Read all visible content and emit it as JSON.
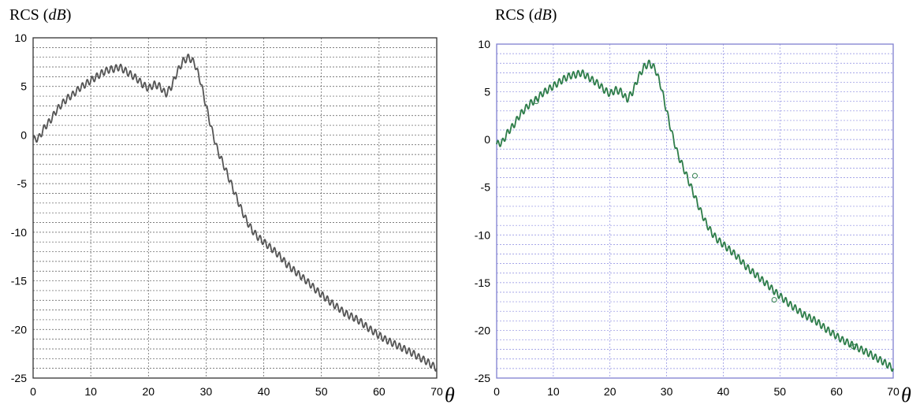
{
  "chart_data": [
    {
      "type": "line",
      "ylabel": "RCS (dB)",
      "ylabel_prefix": "RCS (",
      "ylabel_unit": "dB",
      "ylabel_suffix": ")",
      "xlabel": "θ",
      "xlim": [
        0,
        70
      ],
      "ylim": [
        -25,
        10
      ],
      "xticks": [
        0,
        10,
        20,
        30,
        40,
        50,
        60,
        70
      ],
      "yticks": [
        10,
        5,
        0,
        -5,
        -10,
        -15,
        -20,
        -25
      ],
      "minor_y_step": 1,
      "grid": true,
      "series": [
        {
          "color": "#555555",
          "x": [
            0,
            1,
            2,
            3,
            4,
            5,
            6,
            7,
            8,
            9,
            10,
            11,
            12,
            13,
            14,
            15,
            16,
            17,
            18,
            19,
            20,
            21,
            22,
            23,
            24,
            25,
            26,
            27,
            28,
            29,
            30,
            31,
            32,
            33,
            34,
            35,
            36,
            37,
            38,
            39,
            40,
            41,
            42,
            43,
            44,
            45,
            46,
            47,
            48,
            49,
            50,
            51,
            52,
            53,
            54,
            55,
            56,
            57,
            58,
            59,
            60,
            61,
            62,
            63,
            64,
            65,
            66,
            67,
            68,
            69,
            70
          ],
          "y": [
            -0.5,
            -0.3,
            0.8,
            1.5,
            2.5,
            3.2,
            3.8,
            4.2,
            4.8,
            5.2,
            5.6,
            6.0,
            6.4,
            6.7,
            6.8,
            7.0,
            6.6,
            6.2,
            5.8,
            5.2,
            4.8,
            5.2,
            5.0,
            4.2,
            5.0,
            6.5,
            7.6,
            8.0,
            7.4,
            5.6,
            3.0,
            0.5,
            -1.6,
            -3.0,
            -4.5,
            -6.0,
            -7.5,
            -8.8,
            -9.8,
            -10.5,
            -11.0,
            -11.5,
            -12.0,
            -12.6,
            -13.3,
            -13.8,
            -14.3,
            -14.8,
            -15.3,
            -15.9,
            -16.4,
            -16.9,
            -17.4,
            -17.8,
            -18.3,
            -18.6,
            -18.9,
            -19.3,
            -19.8,
            -20.2,
            -20.6,
            -21.0,
            -21.3,
            -21.6,
            -21.9,
            -22.2,
            -22.5,
            -22.9,
            -23.2,
            -23.6,
            -24.0
          ],
          "ripple_amplitude": 0.35,
          "ripple_per_degree": 1.2
        }
      ]
    },
    {
      "type": "line",
      "ylabel": "RCS (dB)",
      "ylabel_prefix": "RCS (",
      "ylabel_unit": "dB",
      "ylabel_suffix": ")",
      "xlabel": "θ",
      "xlim": [
        0,
        70
      ],
      "ylim": [
        -25,
        10
      ],
      "xticks": [
        0,
        10,
        20,
        30,
        40,
        50,
        60,
        70
      ],
      "yticks": [
        10,
        5,
        0,
        -5,
        -10,
        -15,
        -20,
        -25
      ],
      "minor_y_step": 1,
      "grid": true,
      "series": [
        {
          "color": "#2e7d4a",
          "x": [
            0,
            1,
            2,
            3,
            4,
            5,
            6,
            7,
            8,
            9,
            10,
            11,
            12,
            13,
            14,
            15,
            16,
            17,
            18,
            19,
            20,
            21,
            22,
            23,
            24,
            25,
            26,
            27,
            28,
            29,
            30,
            31,
            32,
            33,
            34,
            35,
            36,
            37,
            38,
            39,
            40,
            41,
            42,
            43,
            44,
            45,
            46,
            47,
            48,
            49,
            50,
            51,
            52,
            53,
            54,
            55,
            56,
            57,
            58,
            59,
            60,
            61,
            62,
            63,
            64,
            65,
            66,
            67,
            68,
            69,
            70
          ],
          "y": [
            -0.5,
            -0.3,
            0.8,
            1.5,
            2.5,
            3.2,
            3.8,
            4.2,
            4.8,
            5.2,
            5.6,
            6.0,
            6.4,
            6.7,
            6.8,
            7.0,
            6.6,
            6.2,
            5.8,
            5.2,
            4.8,
            5.2,
            5.0,
            4.2,
            5.0,
            6.5,
            7.6,
            8.0,
            7.4,
            5.6,
            3.0,
            0.5,
            -1.6,
            -3.0,
            -4.5,
            -6.0,
            -7.5,
            -8.8,
            -9.8,
            -10.5,
            -11.0,
            -11.5,
            -12.0,
            -12.6,
            -13.3,
            -13.8,
            -14.3,
            -14.8,
            -15.3,
            -15.9,
            -16.4,
            -16.9,
            -17.4,
            -17.8,
            -18.3,
            -18.6,
            -18.9,
            -19.3,
            -19.8,
            -20.2,
            -20.6,
            -21.0,
            -21.3,
            -21.6,
            -21.9,
            -22.2,
            -22.5,
            -22.9,
            -23.2,
            -23.6,
            -24.0
          ],
          "ripple_amplitude": 0.35,
          "ripple_per_degree": 1.2
        }
      ],
      "markers": [
        {
          "x": 7,
          "y": 4.0
        },
        {
          "x": 35,
          "y": -3.8
        },
        {
          "x": 49,
          "y": -16.8
        },
        {
          "x": 63,
          "y": -21.7
        }
      ]
    }
  ],
  "colors": {
    "left_frame": "#333333",
    "left_grid": "#555555",
    "right_frame": "#7f7fd0",
    "right_grid": "#8a8ae0"
  }
}
